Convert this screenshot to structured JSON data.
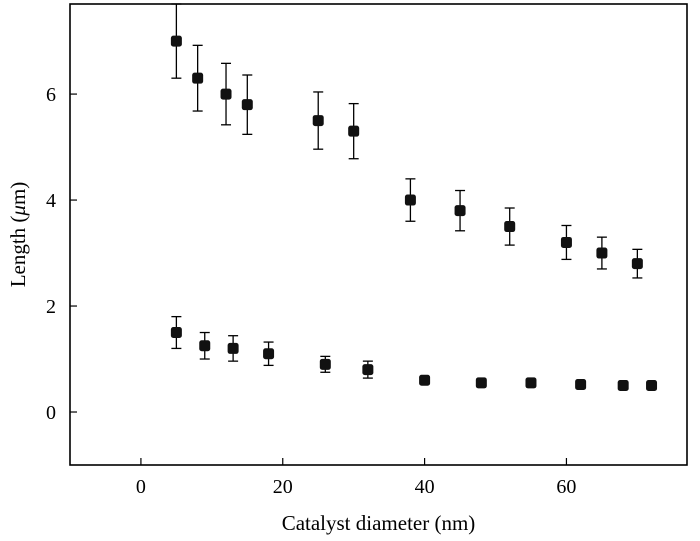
{
  "chart_data": {
    "type": "scatter",
    "title": "",
    "xlabel": "Catalyst diameter (nm)",
    "ylabel_prefix": "Length (",
    "ylabel_unit_symbol": "μ",
    "ylabel_suffix": "m)",
    "xlim": [
      -10,
      77
    ],
    "ylim": [
      -1,
      7.7
    ],
    "xticks": [
      0,
      20,
      40,
      60
    ],
    "yticks": [
      0,
      2,
      4,
      6
    ],
    "grid": false,
    "legend": "none",
    "series": [
      {
        "points": [
          {
            "x": 5,
            "y": 7.0,
            "err": 0.7
          },
          {
            "x": 8,
            "y": 6.3,
            "err": 0.62
          },
          {
            "x": 12,
            "y": 6.0,
            "err": 0.58
          },
          {
            "x": 15,
            "y": 5.8,
            "err": 0.56
          },
          {
            "x": 25,
            "y": 5.5,
            "err": 0.54
          },
          {
            "x": 30,
            "y": 5.3,
            "err": 0.52
          },
          {
            "x": 38,
            "y": 4.0,
            "err": 0.4
          },
          {
            "x": 45,
            "y": 3.8,
            "err": 0.38
          },
          {
            "x": 52,
            "y": 3.5,
            "err": 0.35
          },
          {
            "x": 60,
            "y": 3.2,
            "err": 0.32
          },
          {
            "x": 65,
            "y": 3.0,
            "err": 0.3
          },
          {
            "x": 70,
            "y": 2.8,
            "err": 0.27
          }
        ]
      },
      {
        "points": [
          {
            "x": 5,
            "y": 1.5,
            "err": 0.3
          },
          {
            "x": 9,
            "y": 1.25,
            "err": 0.25
          },
          {
            "x": 13,
            "y": 1.2,
            "err": 0.24
          },
          {
            "x": 18,
            "y": 1.1,
            "err": 0.22
          },
          {
            "x": 26,
            "y": 0.9,
            "err": 0.15
          },
          {
            "x": 32,
            "y": 0.8,
            "err": 0.16
          },
          {
            "x": 40,
            "y": 0.6,
            "err": 0.06
          },
          {
            "x": 48,
            "y": 0.55,
            "err": 0.05
          },
          {
            "x": 55,
            "y": 0.55,
            "err": 0.05
          },
          {
            "x": 62,
            "y": 0.52,
            "err": 0.05
          },
          {
            "x": 68,
            "y": 0.5,
            "err": 0.05
          },
          {
            "x": 72,
            "y": 0.5,
            "err": 0.05
          }
        ]
      }
    ]
  }
}
